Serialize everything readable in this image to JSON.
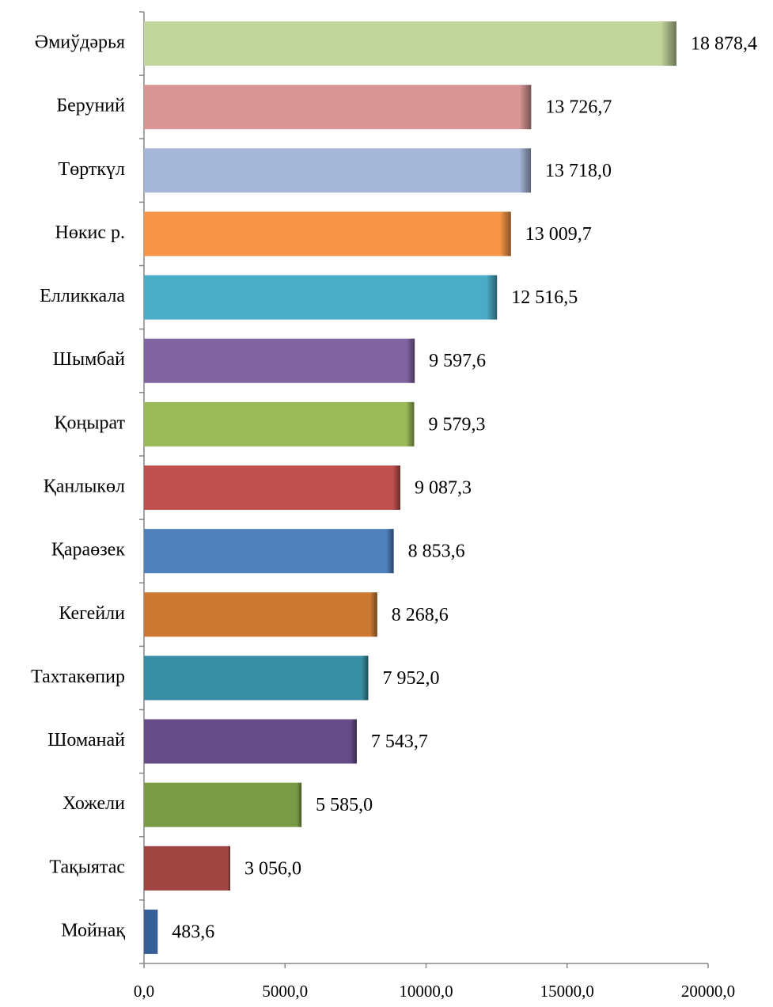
{
  "chart_data": {
    "type": "barh",
    "categories": [
      "Әмиўдәрья",
      "Беруний",
      "Төрткүл",
      "Нөкис р.",
      "Елликкала",
      "Шымбай",
      "Қоңырат",
      "Қанлыкөл",
      "Қараөзек",
      "Кегейли",
      "Тахтакөпир",
      "Шоманай",
      "Хожели",
      "Тақыятас",
      "Мойнақ"
    ],
    "values": [
      18878.4,
      13726.7,
      13718.0,
      13009.7,
      12516.5,
      9597.6,
      9579.3,
      9087.3,
      8853.6,
      8268.6,
      7952.0,
      7543.7,
      5585.0,
      3056.0,
      483.6
    ],
    "value_labels": [
      "18 878,4",
      "13 726,7",
      "13 718,0",
      "13 009,7",
      "12 516,5",
      "9 597,6",
      "9 579,3",
      "9 087,3",
      "8 853,6",
      "8 268,6",
      "7 952,0",
      "7 543,7",
      "5 585,0",
      "3 056,0",
      "483,6"
    ],
    "colors": [
      "#c3d69b",
      "#d99694",
      "#a6b6d8",
      "#f79646",
      "#4bacc6",
      "#8064a2",
      "#9bbb59",
      "#c0504d",
      "#4f81bd",
      "#cc7a33",
      "#378ea2",
      "#654b88",
      "#7a9a45",
      "#a04542",
      "#365f99"
    ],
    "xlim": [
      0,
      20000
    ],
    "xticks": [
      {
        "value": 0,
        "label": "0,0"
      },
      {
        "value": 5000,
        "label": "5000,0"
      },
      {
        "value": 10000,
        "label": "10000,0"
      },
      {
        "value": 15000,
        "label": "15000,0"
      },
      {
        "value": 20000,
        "label": "20000,0"
      }
    ]
  }
}
